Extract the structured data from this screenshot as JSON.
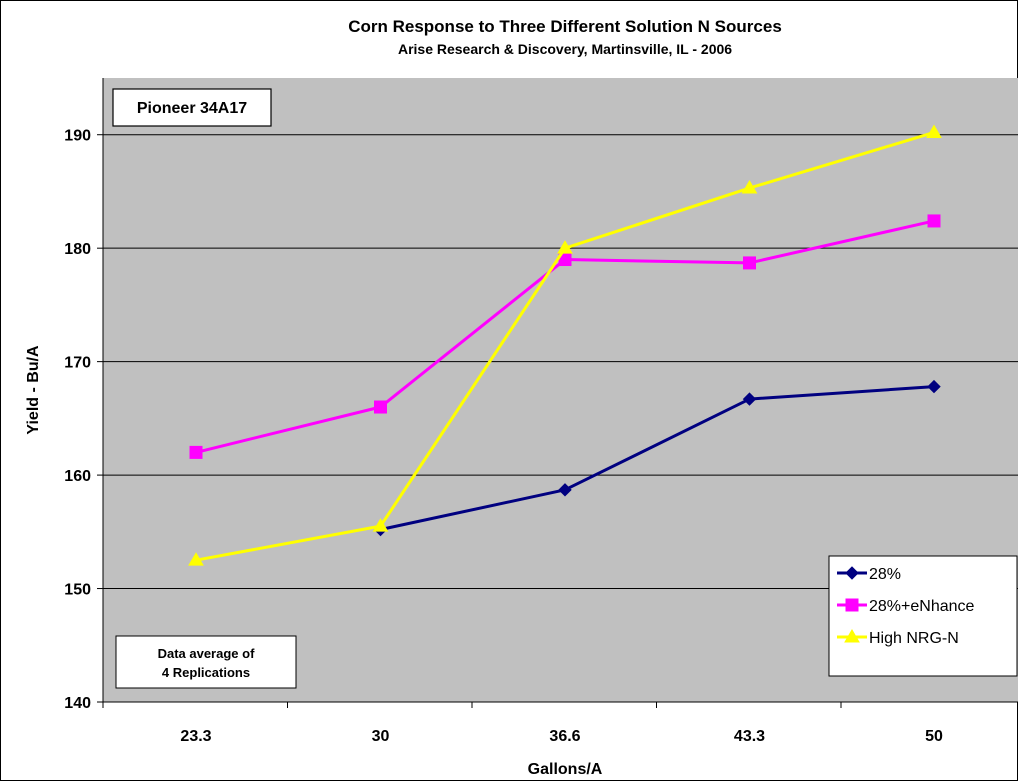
{
  "chart_data": {
    "type": "line",
    "title": "Corn Response to Three Different Solution N Sources",
    "subtitle": "Arise Research & Discovery, Martinsville, IL - 2006",
    "xlabel": "Gallons/A",
    "ylabel": "Yield - Bu/A",
    "categories": [
      "23.3",
      "30",
      "36.6",
      "43.3",
      "50"
    ],
    "ylim": [
      140,
      195
    ],
    "yticks": [
      140,
      150,
      160,
      170,
      180,
      190
    ],
    "grid": true,
    "legend_position": "bottom-right",
    "plot_background": "#c0c0c0",
    "hybrid_label": "Pioneer 34A17",
    "note_lines": [
      "Data average of",
      "4 Replications"
    ],
    "series": [
      {
        "name": "28%",
        "values": [
          null,
          155.2,
          158.7,
          166.7,
          167.8
        ],
        "color": "#000080",
        "marker": "diamond"
      },
      {
        "name": "28%+eNhance",
        "values": [
          162.0,
          166.0,
          179.0,
          178.7,
          182.4
        ],
        "color": "#ff00ff",
        "marker": "square"
      },
      {
        "name": "High NRG-N",
        "values": [
          152.5,
          155.5,
          180.0,
          185.3,
          190.2
        ],
        "color": "#ffff00",
        "marker": "triangle"
      }
    ]
  }
}
